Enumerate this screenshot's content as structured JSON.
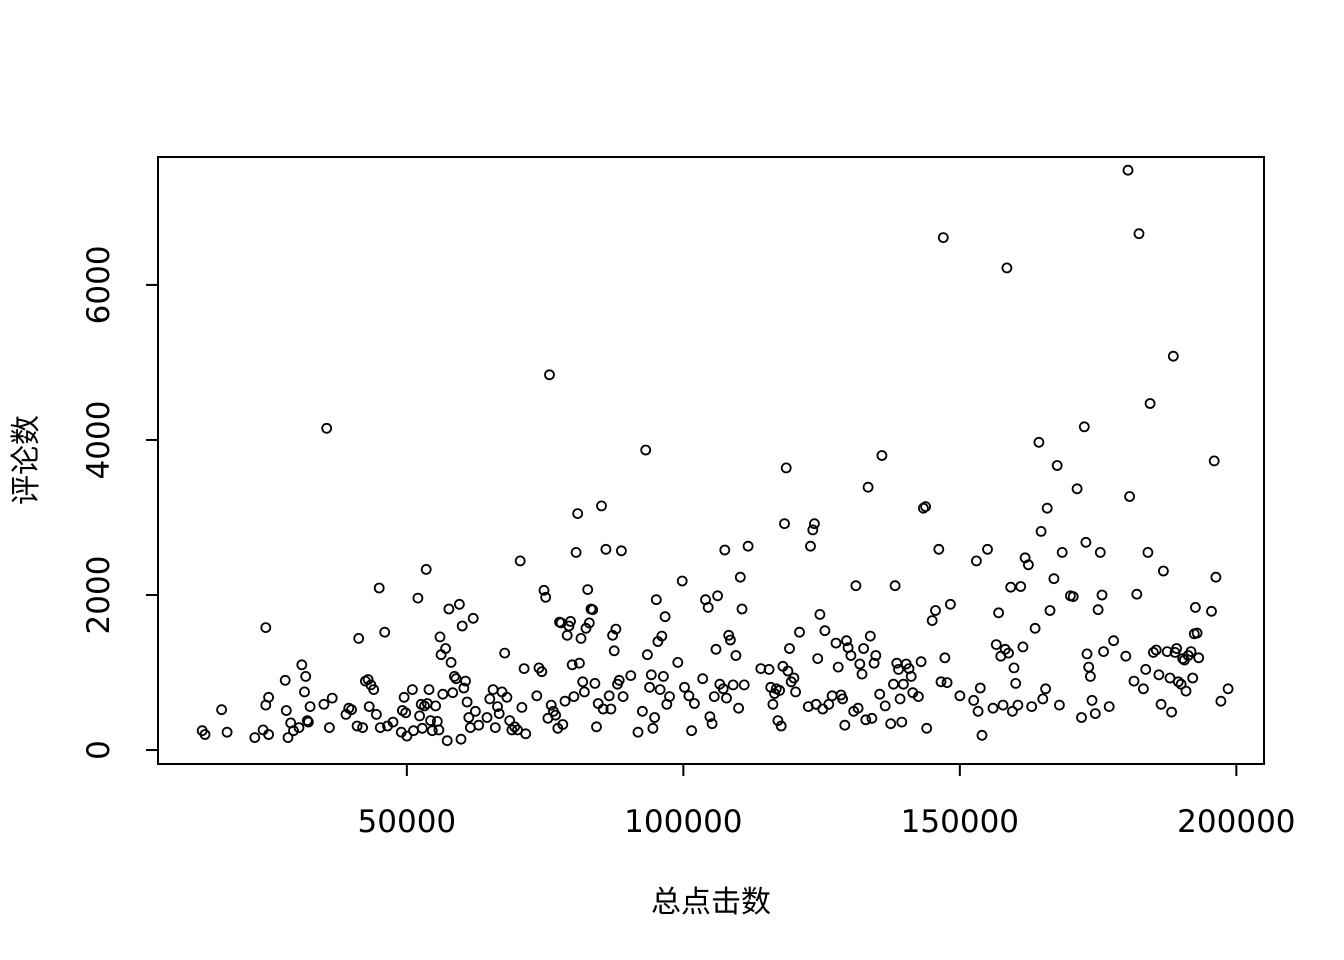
{
  "chart_data": {
    "type": "scatter",
    "xlabel": "总点击数",
    "ylabel": "评论数",
    "xlim": [
      5000,
      205000
    ],
    "ylim": [
      -180,
      7650
    ],
    "x_ticks": [
      50000,
      100000,
      150000,
      200000
    ],
    "y_ticks": [
      0,
      2000,
      4000,
      6000
    ],
    "grid": false,
    "points": [
      [
        13000,
        250
      ],
      [
        13500,
        200
      ],
      [
        16500,
        520
      ],
      [
        17500,
        230
      ],
      [
        22500,
        160
      ],
      [
        24000,
        260
      ],
      [
        24500,
        580
      ],
      [
        24500,
        1580
      ],
      [
        25000,
        680
      ],
      [
        25000,
        200
      ],
      [
        28000,
        900
      ],
      [
        28200,
        510
      ],
      [
        28500,
        160
      ],
      [
        29000,
        350
      ],
      [
        29500,
        250
      ],
      [
        30500,
        290
      ],
      [
        31000,
        1100
      ],
      [
        31500,
        750
      ],
      [
        31700,
        950
      ],
      [
        32000,
        380
      ],
      [
        32200,
        360
      ],
      [
        32500,
        560
      ],
      [
        35000,
        590
      ],
      [
        35500,
        4150
      ],
      [
        36000,
        290
      ],
      [
        36500,
        670
      ],
      [
        39000,
        460
      ],
      [
        39500,
        540
      ],
      [
        40000,
        520
      ],
      [
        41000,
        310
      ],
      [
        41300,
        1440
      ],
      [
        42000,
        290
      ],
      [
        42500,
        890
      ],
      [
        43000,
        910
      ],
      [
        43200,
        560
      ],
      [
        43500,
        840
      ],
      [
        44000,
        780
      ],
      [
        44500,
        460
      ],
      [
        45000,
        2090
      ],
      [
        45200,
        290
      ],
      [
        46000,
        1520
      ],
      [
        46500,
        310
      ],
      [
        47500,
        360
      ],
      [
        49000,
        230
      ],
      [
        49200,
        510
      ],
      [
        49500,
        680
      ],
      [
        49800,
        480
      ],
      [
        50000,
        180
      ],
      [
        51000,
        780
      ],
      [
        51200,
        250
      ],
      [
        52000,
        1960
      ],
      [
        52300,
        440
      ],
      [
        52600,
        590
      ],
      [
        52800,
        280
      ],
      [
        53200,
        570
      ],
      [
        53500,
        2330
      ],
      [
        53700,
        600
      ],
      [
        54000,
        780
      ],
      [
        54300,
        380
      ],
      [
        54600,
        250
      ],
      [
        55200,
        570
      ],
      [
        55500,
        370
      ],
      [
        55800,
        260
      ],
      [
        56000,
        1460
      ],
      [
        56200,
        1230
      ],
      [
        56500,
        720
      ],
      [
        57000,
        1310
      ],
      [
        57300,
        120
      ],
      [
        57600,
        1820
      ],
      [
        58000,
        1130
      ],
      [
        58300,
        740
      ],
      [
        58600,
        950
      ],
      [
        58900,
        920
      ],
      [
        59500,
        1880
      ],
      [
        59800,
        140
      ],
      [
        60000,
        1600
      ],
      [
        60300,
        800
      ],
      [
        60600,
        890
      ],
      [
        60900,
        620
      ],
      [
        61200,
        420
      ],
      [
        61500,
        290
      ],
      [
        62000,
        1700
      ],
      [
        62400,
        500
      ],
      [
        63000,
        320
      ],
      [
        64500,
        420
      ],
      [
        65000,
        660
      ],
      [
        65600,
        780
      ],
      [
        66000,
        290
      ],
      [
        66400,
        560
      ],
      [
        66700,
        470
      ],
      [
        67200,
        750
      ],
      [
        67700,
        1250
      ],
      [
        68100,
        680
      ],
      [
        68600,
        380
      ],
      [
        69000,
        260
      ],
      [
        69500,
        300
      ],
      [
        70000,
        260
      ],
      [
        70500,
        2440
      ],
      [
        70800,
        550
      ],
      [
        71200,
        1050
      ],
      [
        71500,
        210
      ],
      [
        73500,
        700
      ],
      [
        73900,
        1060
      ],
      [
        74400,
        1010
      ],
      [
        74800,
        2060
      ],
      [
        75100,
        1970
      ],
      [
        75500,
        410
      ],
      [
        75800,
        4840
      ],
      [
        76100,
        580
      ],
      [
        76500,
        500
      ],
      [
        76900,
        450
      ],
      [
        77300,
        280
      ],
      [
        77600,
        1650
      ],
      [
        77900,
        1640
      ],
      [
        78200,
        330
      ],
      [
        78600,
        630
      ],
      [
        79000,
        1480
      ],
      [
        79300,
        1600
      ],
      [
        79600,
        1660
      ],
      [
        79900,
        1100
      ],
      [
        80200,
        690
      ],
      [
        80600,
        2550
      ],
      [
        80900,
        3050
      ],
      [
        81200,
        1120
      ],
      [
        81500,
        1440
      ],
      [
        81800,
        880
      ],
      [
        82100,
        750
      ],
      [
        82400,
        1570
      ],
      [
        82700,
        2070
      ],
      [
        83000,
        1640
      ],
      [
        83300,
        1820
      ],
      [
        83600,
        1810
      ],
      [
        84000,
        860
      ],
      [
        84300,
        300
      ],
      [
        84600,
        600
      ],
      [
        85200,
        3150
      ],
      [
        85500,
        530
      ],
      [
        86000,
        2590
      ],
      [
        86600,
        700
      ],
      [
        86900,
        530
      ],
      [
        87200,
        1480
      ],
      [
        87500,
        1280
      ],
      [
        87800,
        1560
      ],
      [
        88100,
        850
      ],
      [
        88400,
        900
      ],
      [
        88800,
        2570
      ],
      [
        89100,
        690
      ],
      [
        90500,
        960
      ],
      [
        91800,
        230
      ],
      [
        92600,
        500
      ],
      [
        93200,
        3870
      ],
      [
        93500,
        1230
      ],
      [
        93900,
        810
      ],
      [
        94200,
        970
      ],
      [
        94500,
        280
      ],
      [
        94800,
        420
      ],
      [
        95100,
        1940
      ],
      [
        95400,
        1400
      ],
      [
        95800,
        780
      ],
      [
        96100,
        1470
      ],
      [
        96400,
        950
      ],
      [
        96700,
        1720
      ],
      [
        97000,
        590
      ],
      [
        97500,
        690
      ],
      [
        99000,
        1130
      ],
      [
        99800,
        2180
      ],
      [
        100200,
        810
      ],
      [
        101000,
        700
      ],
      [
        101500,
        250
      ],
      [
        102000,
        600
      ],
      [
        103500,
        920
      ],
      [
        104000,
        1940
      ],
      [
        104500,
        1840
      ],
      [
        104800,
        430
      ],
      [
        105200,
        340
      ],
      [
        105600,
        690
      ],
      [
        105900,
        1300
      ],
      [
        106200,
        1990
      ],
      [
        106600,
        850
      ],
      [
        107200,
        790
      ],
      [
        107500,
        2580
      ],
      [
        107800,
        670
      ],
      [
        108200,
        1480
      ],
      [
        108500,
        1420
      ],
      [
        109000,
        840
      ],
      [
        109500,
        1220
      ],
      [
        110000,
        540
      ],
      [
        110300,
        2230
      ],
      [
        110600,
        1820
      ],
      [
        111000,
        840
      ],
      [
        111700,
        2630
      ],
      [
        114000,
        1050
      ],
      [
        115500,
        1040
      ],
      [
        115800,
        810
      ],
      [
        116200,
        590
      ],
      [
        116500,
        730
      ],
      [
        116800,
        790
      ],
      [
        117100,
        380
      ],
      [
        117400,
        770
      ],
      [
        117700,
        310
      ],
      [
        118000,
        1080
      ],
      [
        118300,
        2920
      ],
      [
        118600,
        3640
      ],
      [
        118900,
        1020
      ],
      [
        119200,
        1310
      ],
      [
        119500,
        880
      ],
      [
        120000,
        930
      ],
      [
        120300,
        750
      ],
      [
        121000,
        1520
      ],
      [
        122600,
        560
      ],
      [
        123000,
        2630
      ],
      [
        123400,
        2840
      ],
      [
        123700,
        2920
      ],
      [
        124000,
        590
      ],
      [
        124300,
        1180
      ],
      [
        124700,
        1750
      ],
      [
        125200,
        530
      ],
      [
        125600,
        1540
      ],
      [
        126300,
        590
      ],
      [
        126900,
        700
      ],
      [
        127600,
        1380
      ],
      [
        128000,
        1070
      ],
      [
        128500,
        710
      ],
      [
        128800,
        660
      ],
      [
        129200,
        320
      ],
      [
        129500,
        1410
      ],
      [
        129800,
        1320
      ],
      [
        130300,
        1220
      ],
      [
        130800,
        500
      ],
      [
        131200,
        2120
      ],
      [
        131600,
        540
      ],
      [
        131900,
        1110
      ],
      [
        132300,
        980
      ],
      [
        132600,
        1310
      ],
      [
        133000,
        390
      ],
      [
        133400,
        3390
      ],
      [
        133800,
        1470
      ],
      [
        134100,
        410
      ],
      [
        134500,
        1120
      ],
      [
        134800,
        1220
      ],
      [
        135500,
        720
      ],
      [
        135900,
        3800
      ],
      [
        136500,
        570
      ],
      [
        137500,
        340
      ],
      [
        138000,
        850
      ],
      [
        138300,
        2120
      ],
      [
        138600,
        1120
      ],
      [
        138900,
        1040
      ],
      [
        139200,
        660
      ],
      [
        139500,
        360
      ],
      [
        139800,
        850
      ],
      [
        140300,
        1110
      ],
      [
        140800,
        1050
      ],
      [
        141200,
        950
      ],
      [
        141500,
        740
      ],
      [
        142500,
        690
      ],
      [
        143000,
        1140
      ],
      [
        143400,
        3120
      ],
      [
        143800,
        3140
      ],
      [
        144000,
        280
      ],
      [
        145000,
        1670
      ],
      [
        145600,
        1800
      ],
      [
        146200,
        2590
      ],
      [
        146600,
        880
      ],
      [
        147000,
        6610
      ],
      [
        147300,
        1190
      ],
      [
        147700,
        870
      ],
      [
        148300,
        1880
      ],
      [
        150000,
        700
      ],
      [
        152500,
        640
      ],
      [
        153000,
        2440
      ],
      [
        153300,
        500
      ],
      [
        153700,
        800
      ],
      [
        154000,
        190
      ],
      [
        155000,
        2590
      ],
      [
        156000,
        540
      ],
      [
        156600,
        1360
      ],
      [
        157000,
        1770
      ],
      [
        157400,
        1210
      ],
      [
        157800,
        580
      ],
      [
        158200,
        1300
      ],
      [
        158500,
        6220
      ],
      [
        158800,
        1250
      ],
      [
        159200,
        2100
      ],
      [
        159500,
        500
      ],
      [
        159800,
        1060
      ],
      [
        160100,
        860
      ],
      [
        160500,
        580
      ],
      [
        161000,
        2110
      ],
      [
        161400,
        1330
      ],
      [
        161800,
        2480
      ],
      [
        162400,
        2390
      ],
      [
        163000,
        560
      ],
      [
        163600,
        1570
      ],
      [
        164300,
        3970
      ],
      [
        164700,
        2820
      ],
      [
        165000,
        660
      ],
      [
        165500,
        790
      ],
      [
        165800,
        3120
      ],
      [
        166300,
        1800
      ],
      [
        167000,
        2210
      ],
      [
        167600,
        3670
      ],
      [
        168000,
        580
      ],
      [
        168500,
        2550
      ],
      [
        170000,
        1990
      ],
      [
        170500,
        1980
      ],
      [
        171200,
        3370
      ],
      [
        172000,
        420
      ],
      [
        172500,
        4170
      ],
      [
        172800,
        2680
      ],
      [
        173000,
        1240
      ],
      [
        173300,
        1070
      ],
      [
        173600,
        950
      ],
      [
        173900,
        640
      ],
      [
        174500,
        470
      ],
      [
        175000,
        1810
      ],
      [
        175400,
        2550
      ],
      [
        175700,
        2000
      ],
      [
        176000,
        1270
      ],
      [
        177000,
        560
      ],
      [
        177800,
        1410
      ],
      [
        180000,
        1210
      ],
      [
        180400,
        7480
      ],
      [
        180700,
        3270
      ],
      [
        181500,
        890
      ],
      [
        182000,
        2010
      ],
      [
        182400,
        6660
      ],
      [
        183200,
        790
      ],
      [
        183600,
        1040
      ],
      [
        184000,
        2550
      ],
      [
        184400,
        4470
      ],
      [
        185000,
        1260
      ],
      [
        185500,
        1290
      ],
      [
        186000,
        970
      ],
      [
        186400,
        590
      ],
      [
        186800,
        2310
      ],
      [
        187500,
        1270
      ],
      [
        188000,
        930
      ],
      [
        188300,
        490
      ],
      [
        188600,
        5080
      ],
      [
        188900,
        1260
      ],
      [
        189200,
        1310
      ],
      [
        189500,
        880
      ],
      [
        190000,
        850
      ],
      [
        190300,
        1180
      ],
      [
        190600,
        1160
      ],
      [
        190900,
        760
      ],
      [
        191300,
        1220
      ],
      [
        191800,
        1270
      ],
      [
        192100,
        930
      ],
      [
        192400,
        1500
      ],
      [
        192600,
        1840
      ],
      [
        192900,
        1510
      ],
      [
        193200,
        1190
      ],
      [
        195500,
        1790
      ],
      [
        196000,
        3730
      ],
      [
        196300,
        2230
      ],
      [
        197200,
        630
      ],
      [
        198500,
        790
      ]
    ]
  }
}
